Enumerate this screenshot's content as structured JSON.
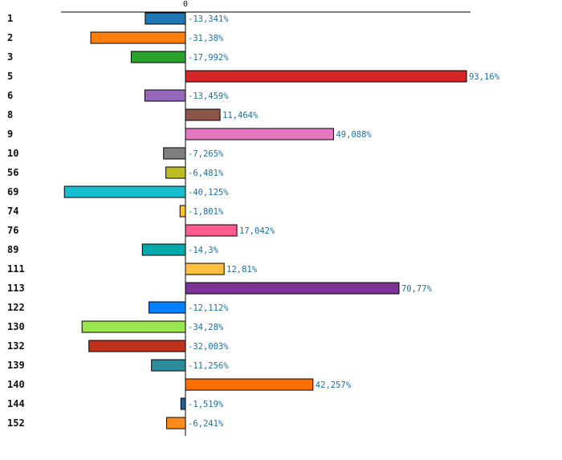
{
  "chart_data": {
    "type": "bar",
    "orientation": "horizontal",
    "title": "",
    "xlabel": "",
    "ylabel": "",
    "zero_label": "0",
    "xlim": [
      -44.5,
      95
    ],
    "categories": [
      "1",
      "2",
      "3",
      "5",
      "6",
      "8",
      "9",
      "10",
      "56",
      "69",
      "74",
      "76",
      "89",
      "111",
      "113",
      "122",
      "130",
      "132",
      "139",
      "140",
      "144",
      "152"
    ],
    "values": [
      -13.341,
      -31.38,
      -17.992,
      93.16,
      -13.459,
      11.464,
      49.088,
      -7.265,
      -6.481,
      -40.125,
      -1.801,
      17.042,
      -14.3,
      12.81,
      70.77,
      -12.112,
      -34.28,
      -32.003,
      -11.256,
      42.257,
      -1.519,
      -6.241
    ],
    "value_labels": [
      "-13,341%",
      "-31,38%",
      "-17,992%",
      "93,16%",
      "-13,459%",
      "11,464%",
      "49,088%",
      "-7,265%",
      "-6,481%",
      "-40,125%",
      "-1,801%",
      "17,042%",
      "-14,3%",
      "12,81%",
      "70,77%",
      "-12,112%",
      "-34,28%",
      "-32,003%",
      "-11,256%",
      "42,257%",
      "-1,519%",
      "-6,241%"
    ],
    "colors": [
      "#1f77b4",
      "#ff7f0e",
      "#2ca02c",
      "#d62728",
      "#9467bd",
      "#8c564b",
      "#e377c2",
      "#7f7f7f",
      "#bcbd22",
      "#17becf",
      "#ffc125",
      "#ff5b8f",
      "#00aaaa",
      "#ffbf3f",
      "#7b3294",
      "#0080ff",
      "#99e64d",
      "#c0321d",
      "#2b8c9e",
      "#ff6f00",
      "#2060a0",
      "#ff8c1a"
    ]
  }
}
